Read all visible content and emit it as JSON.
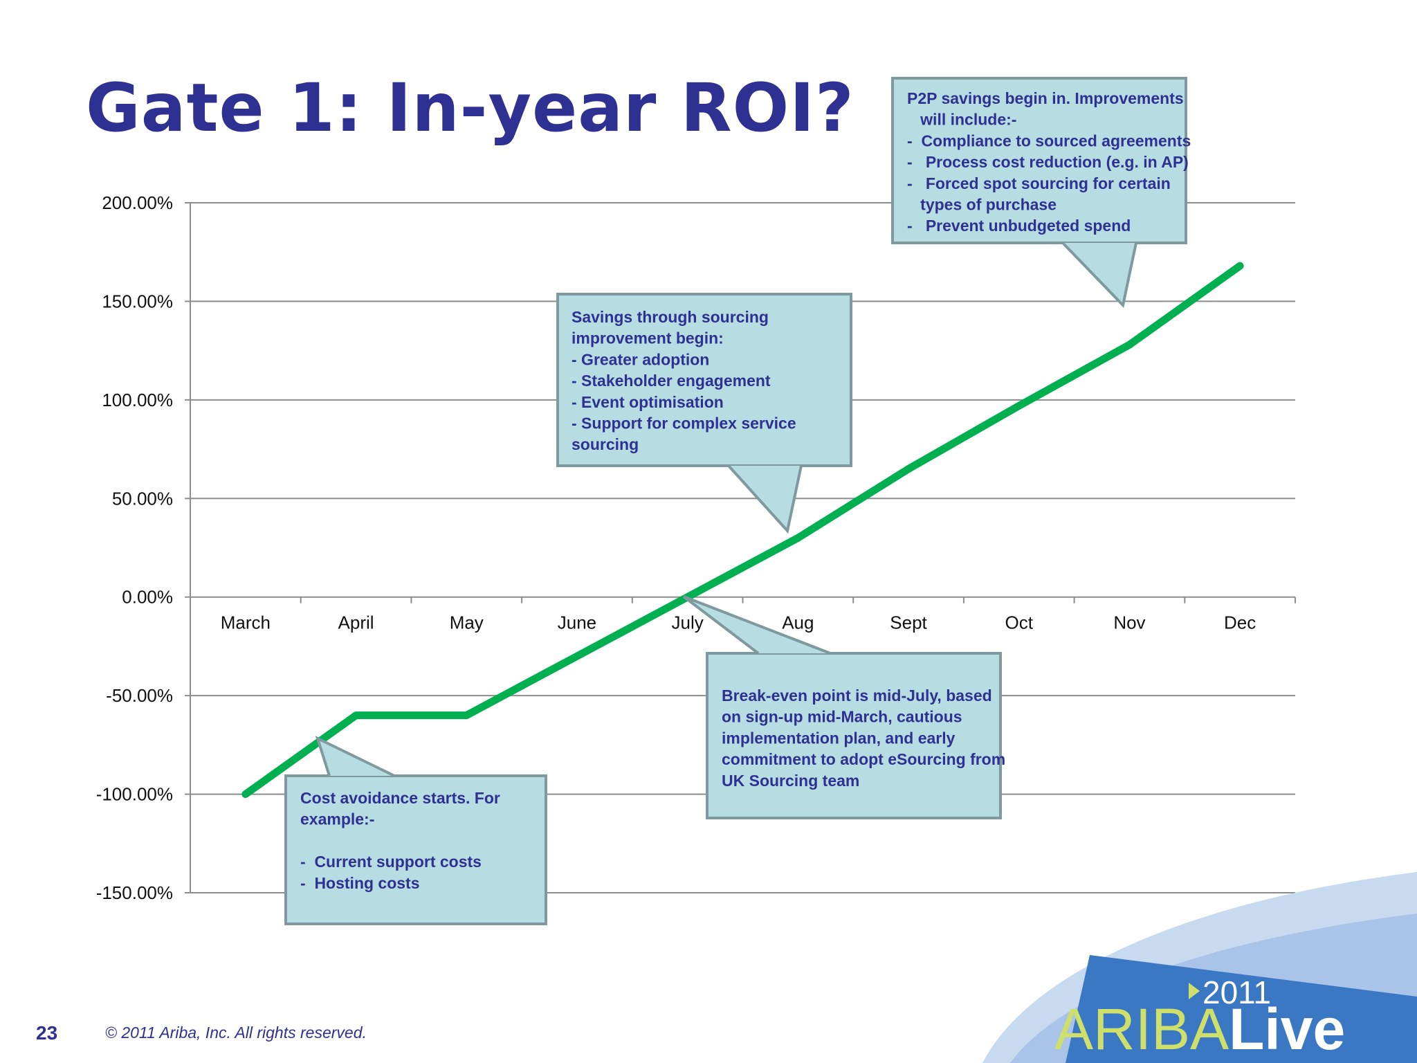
{
  "slide": {
    "title": "Gate 1: In-year ROI?",
    "page_number": "23",
    "copyright": "© 2011 Ariba, Inc. All rights reserved.",
    "logo": {
      "brand": "ARIBALive",
      "year": "2011"
    }
  },
  "colors": {
    "title": "#2e3192",
    "line": "#00b050",
    "callout_fill": "#b7dde2",
    "callout_border": "#7f9a9e",
    "callout_text": "#2e3192",
    "grid": "#8c8c8c"
  },
  "chart_data": {
    "type": "line",
    "title": "",
    "xlabel": "",
    "ylabel": "",
    "categories": [
      "March",
      "April",
      "May",
      "June",
      "July",
      "Aug",
      "Sept",
      "Oct",
      "Nov",
      "Dec"
    ],
    "series": [
      {
        "name": "ROI",
        "values": [
          -100,
          -60,
          -60,
          -30,
          0,
          30,
          65,
          97,
          128,
          168
        ]
      }
    ],
    "ylim": [
      -150,
      200
    ],
    "yticks": [
      200,
      150,
      100,
      50,
      0,
      -50,
      -100,
      -150
    ],
    "ytick_labels": [
      "200.00%",
      "150.00%",
      "100.00%",
      "50.00%",
      "0.00%",
      "-50.00%",
      "-100.00%",
      "-150.00%"
    ],
    "grid": true,
    "legend": "none",
    "annotations": [
      {
        "id": "p2p",
        "lines": [
          "P2P savings begin in. Improvements",
          "   will include:-",
          "-  Compliance to sourced agreements",
          "-   Process cost reduction (e.g. in AP)",
          "-   Forced spot sourcing for certain",
          "   types of purchase",
          "-   Prevent unbudgeted spend"
        ]
      },
      {
        "id": "sourcing",
        "lines": [
          "Savings through sourcing",
          "improvement begin:",
          "- Greater adoption",
          "- Stakeholder engagement",
          "- Event optimisation",
          "- Support for complex service",
          "sourcing"
        ]
      },
      {
        "id": "breakeven",
        "lines": [
          "Break-even point is mid-July, based",
          "on sign-up mid-March, cautious",
          "implementation plan, and early",
          "commitment to adopt eSourcing from",
          "UK Sourcing team"
        ]
      },
      {
        "id": "costavoid",
        "lines": [
          "Cost avoidance starts. For",
          "example:-",
          "",
          "-  Current support costs",
          "-  Hosting costs"
        ]
      }
    ]
  }
}
